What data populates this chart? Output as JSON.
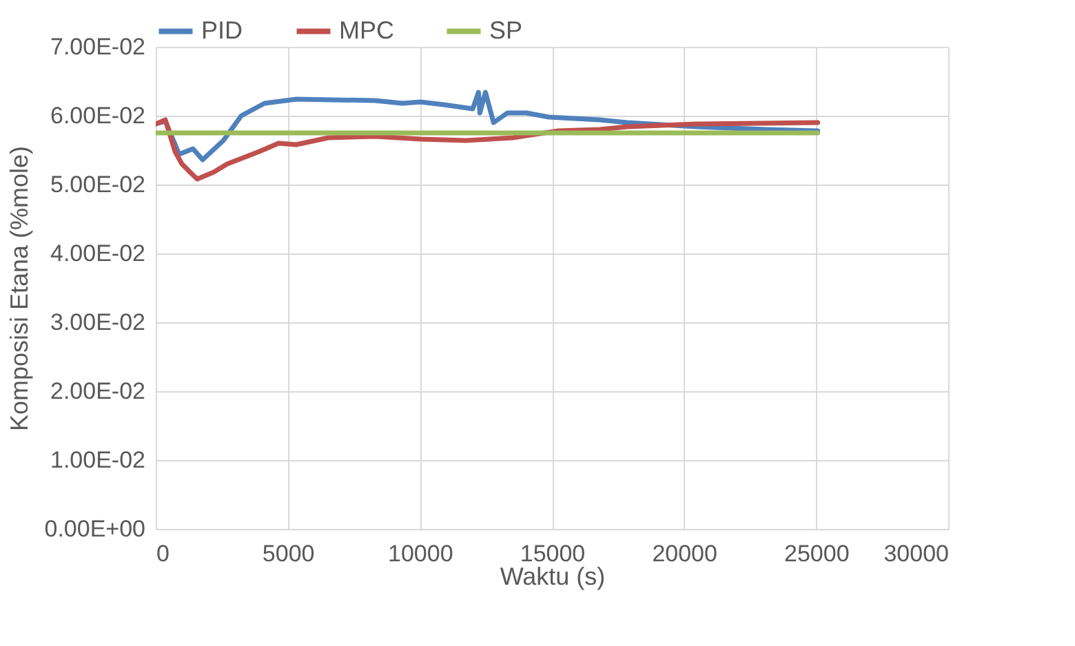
{
  "chart_data": {
    "type": "line",
    "xlabel": "Waktu (s)",
    "ylabel": "Komposisi Etana (%mole)",
    "xlim": [
      0,
      30000
    ],
    "xticks": [
      0,
      5000,
      10000,
      15000,
      20000,
      25000,
      30000
    ],
    "ylim": [
      0,
      0.07
    ],
    "yticks": [
      {
        "value": 0,
        "label": "0.00E+00"
      },
      {
        "value": 0.01,
        "label": "1.00E-02"
      },
      {
        "value": 0.02,
        "label": "2.00E-02"
      },
      {
        "value": 0.03,
        "label": "3.00E-02"
      },
      {
        "value": 0.04,
        "label": "4.00E-02"
      },
      {
        "value": 0.05,
        "label": "5.00E-02"
      },
      {
        "value": 0.06,
        "label": "6.00E-02"
      },
      {
        "value": 0.07,
        "label": "7.00E-02"
      }
    ],
    "grid": true,
    "legend": "top",
    "marker": "none",
    "line_style": "solid",
    "series": [
      {
        "name": "PID",
        "color": "#4f81bd",
        "x": [
          0,
          365,
          887,
          1410,
          1775,
          2560,
          3240,
          4120,
          5320,
          8300,
          9340,
          10020,
          10910,
          12000,
          12220,
          12270,
          12480,
          12790,
          13310,
          14040,
          14880,
          16810,
          17850,
          20460,
          23070,
          25060
        ],
        "values": [
          0.0588,
          0.0592,
          0.0544,
          0.0552,
          0.0536,
          0.0564,
          0.06,
          0.0618,
          0.0624,
          0.0622,
          0.0618,
          0.062,
          0.0616,
          0.061,
          0.0634,
          0.0604,
          0.0634,
          0.059,
          0.0604,
          0.0604,
          0.0598,
          0.0594,
          0.059,
          0.0584,
          0.058,
          0.0578
        ]
      },
      {
        "name": "MPC",
        "color": "#c0504d",
        "x": [
          0,
          365,
          730,
          990,
          1300,
          1570,
          2190,
          2710,
          3920,
          4650,
          5320,
          6530,
          8300,
          10020,
          11750,
          13520,
          15240,
          16810,
          17850,
          20460,
          25060
        ],
        "values": [
          0.0588,
          0.0594,
          0.0548,
          0.053,
          0.0518,
          0.0508,
          0.0518,
          0.053,
          0.0548,
          0.056,
          0.0558,
          0.0568,
          0.057,
          0.0566,
          0.0564,
          0.0568,
          0.0578,
          0.058,
          0.0584,
          0.0588,
          0.059
        ]
      },
      {
        "name": "SP",
        "color": "#9bbb59",
        "x": [
          0,
          25060
        ],
        "values": [
          0.0575,
          0.0575
        ]
      }
    ]
  }
}
